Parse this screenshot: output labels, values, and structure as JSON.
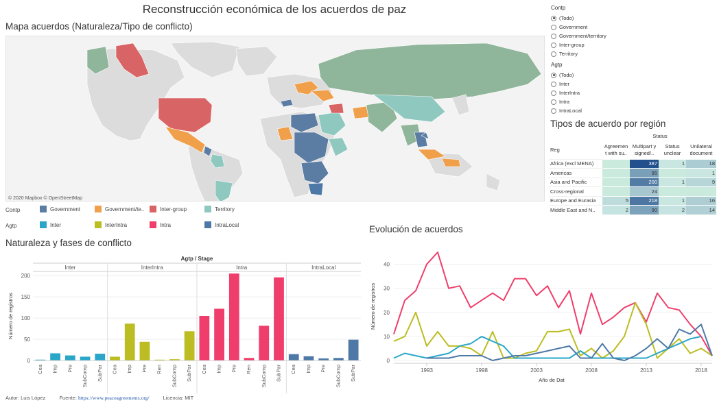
{
  "title": "Reconstrucción económica de los acuerdos de paz",
  "map": {
    "title": "Mapa acuerdos (Naturaleza/Tipo de conflicto)",
    "credit": "© 2020 Mapbox © OpenStreetMap"
  },
  "legend": {
    "contp_label": "Contp",
    "contp": [
      {
        "label": "Government",
        "color": "#5b7da3"
      },
      {
        "label": "Government/te..",
        "color": "#f0a04b"
      },
      {
        "label": "Inter-group",
        "color": "#d96465"
      },
      {
        "label": "Territory",
        "color": "#8fc8bf"
      }
    ],
    "agtp_label": "Agtp",
    "agtp": [
      {
        "label": "Inter",
        "color": "#2aa7c8"
      },
      {
        "label": "InterIntra",
        "color": "#bcbd22"
      },
      {
        "label": "Intra",
        "color": "#ef3e6c"
      },
      {
        "label": "IntraLocal",
        "color": "#4e79a7"
      }
    ]
  },
  "filters": {
    "contp": {
      "title": "Contp",
      "options": [
        "(Todo)",
        "Government",
        "Government/territory",
        "Inter-group",
        "Territory"
      ],
      "selected": "(Todo)"
    },
    "agtp": {
      "title": "Agtp",
      "options": [
        "(Todo)",
        "Inter",
        "InterIntra",
        "Intra",
        "IntraLocal"
      ],
      "selected": "(Todo)"
    }
  },
  "region_table": {
    "title": "Tipos de acuerdo por región",
    "status_header": "Status",
    "row_header": "Reg",
    "columns": [
      "Agreemen t with su..",
      "Multipart y signed/..",
      "Status unclear",
      "Unilateral document"
    ],
    "rows": [
      {
        "label": "Africa (excl MENA)",
        "values": [
          "",
          "387",
          "1",
          "18"
        ]
      },
      {
        "label": "Americas",
        "values": [
          "",
          "95",
          "",
          "1"
        ]
      },
      {
        "label": "Asia and Pacific",
        "values": [
          "",
          "200",
          "1",
          "9"
        ]
      },
      {
        "label": "Cross-regional",
        "values": [
          "",
          "24",
          "",
          ""
        ]
      },
      {
        "label": "Europe and Eurasia",
        "values": [
          "5",
          "218",
          "1",
          "16"
        ]
      },
      {
        "label": "Middle East and N..",
        "values": [
          "2",
          "90",
          "2",
          "14"
        ]
      }
    ]
  },
  "bar_section_title": "Naturaleza y fases de conflicto",
  "line_section_title": "Evolución de acuerdos",
  "footer": {
    "author": "Autor: Luis López",
    "source_label": "Fuente:",
    "source_link": "https://www.peaceagreements.org/",
    "license": "Licencia: MIT"
  },
  "chart_data": [
    {
      "type": "bar",
      "title": "Agtp / Stage",
      "ylabel": "Número de registros",
      "ylim": [
        0,
        210
      ],
      "yticks": [
        0,
        50,
        100,
        150,
        200
      ],
      "panels": [
        {
          "name": "Inter",
          "color": "#2aa7c8",
          "categories": [
            "Cea",
            "Imp",
            "Pre",
            "SubComp",
            "SubPar"
          ],
          "values": [
            2,
            17,
            12,
            9,
            16
          ]
        },
        {
          "name": "InterIntra",
          "color": "#bcbd22",
          "categories": [
            "Cea",
            "Imp",
            "Pre",
            "Ren",
            "SubComp",
            "SubPar"
          ],
          "values": [
            9,
            87,
            44,
            2,
            3,
            69
          ]
        },
        {
          "name": "Intra",
          "color": "#ef3e6c",
          "categories": [
            "Cea",
            "Imp",
            "Pre",
            "Ren",
            "SubComp",
            "SubPar"
          ],
          "values": [
            105,
            122,
            205,
            6,
            82,
            196
          ]
        },
        {
          "name": "IntraLocal",
          "color": "#4e79a7",
          "categories": [
            "Cea",
            "Imp",
            "Pre",
            "SubComp",
            "SubPar"
          ],
          "values": [
            15,
            10,
            5,
            6,
            49
          ]
        }
      ]
    },
    {
      "type": "line",
      "xlabel": "Año de Dat",
      "ylabel": "Número de registros",
      "xlim": [
        1990,
        2019
      ],
      "ylim": [
        0,
        45
      ],
      "xticks": [
        1993,
        1998,
        2003,
        2008,
        2013,
        2018
      ],
      "yticks": [
        0,
        10,
        20,
        30,
        40
      ],
      "series": [
        {
          "color": "#ef3e6c",
          "x": [
            1990,
            1991,
            1992,
            1993,
            1994,
            1995,
            1996,
            1997,
            1998,
            1999,
            2000,
            2001,
            2002,
            2003,
            2004,
            2005,
            2006,
            2007,
            2008,
            2009,
            2010,
            2011,
            2012,
            2013,
            2014,
            2015,
            2016,
            2017,
            2018,
            2019
          ],
          "y": [
            11,
            25,
            29,
            40,
            45,
            30,
            31,
            22,
            25,
            28,
            25,
            34,
            34,
            27,
            31,
            22,
            29,
            11,
            28,
            15,
            18,
            22,
            24,
            16,
            28,
            22,
            21,
            15,
            10,
            2
          ]
        },
        {
          "color": "#bcbd22",
          "x": [
            1990,
            1991,
            1992,
            1993,
            1994,
            1995,
            1996,
            1997,
            1998,
            1999,
            2000,
            2001,
            2002,
            2003,
            2004,
            2005,
            2006,
            2007,
            2008,
            2009,
            2010,
            2011,
            2012,
            2013,
            2014,
            2015,
            2016,
            2017,
            2018,
            2019
          ],
          "y": [
            8,
            10,
            20,
            6,
            12,
            6,
            6,
            5,
            2,
            12,
            1,
            1,
            3,
            4,
            12,
            12,
            13,
            2,
            5,
            1,
            4,
            10,
            24,
            15,
            1,
            5,
            9,
            3,
            5,
            2
          ]
        },
        {
          "color": "#2aa7c8",
          "x": [
            1990,
            1991,
            1992,
            1993,
            1994,
            1995,
            1996,
            1997,
            1998,
            1999,
            2000,
            2001,
            2002,
            2003,
            2004,
            2005,
            2006,
            2007,
            2008,
            2009,
            2010,
            2011,
            2012,
            2013,
            2014,
            2015,
            2016,
            2017,
            2018
          ],
          "y": [
            1,
            3,
            2,
            1,
            2,
            3,
            6,
            7,
            10,
            8,
            6,
            1,
            1,
            1,
            1,
            1,
            1,
            4,
            1,
            1,
            1,
            1,
            1,
            1,
            3,
            5,
            7,
            9,
            10
          ]
        },
        {
          "color": "#4e79a7",
          "x": [
            1993,
            1994,
            1995,
            1996,
            1997,
            1998,
            1999,
            2000,
            2001,
            2002,
            2003,
            2004,
            2005,
            2006,
            2007,
            2008,
            2009,
            2010,
            2011,
            2012,
            2013,
            2014,
            2015,
            2016,
            2017,
            2018,
            2019
          ],
          "y": [
            1,
            1,
            1,
            2,
            2,
            2,
            0,
            1,
            2,
            2,
            3,
            4,
            5,
            6,
            1,
            1,
            7,
            1,
            0,
            2,
            5,
            9,
            5,
            13,
            11,
            15,
            2
          ]
        }
      ]
    }
  ]
}
